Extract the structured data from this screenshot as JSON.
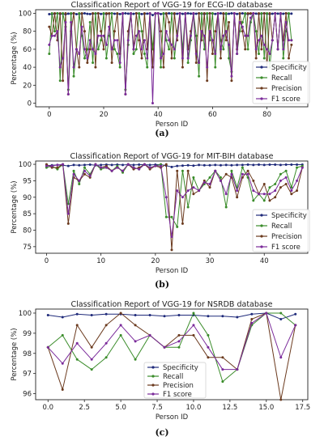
{
  "panels": [
    {
      "caption": "(a)"
    },
    {
      "caption": "(b)"
    },
    {
      "caption": "(c)"
    }
  ],
  "legend_colors": {
    "Specificity": "#1f2a7a",
    "Recall": "#3a8c2a",
    "Precision": "#6b3a1e",
    "F1 score": "#7a2a9a"
  },
  "chart_data": [
    {
      "type": "line",
      "title": "Classification Report of VGG-19 for ECG-ID database",
      "xlabel": "Person ID",
      "ylabel": "Percentage (%)",
      "xlim": [
        -5,
        95
      ],
      "ylim": [
        -4,
        104
      ],
      "xticks": [
        0,
        20,
        40,
        60,
        80
      ],
      "yticks": [
        0,
        20,
        40,
        60,
        80,
        100
      ],
      "legend_position": "lower-right",
      "x": [
        0,
        1,
        2,
        3,
        4,
        5,
        6,
        7,
        8,
        9,
        10,
        11,
        12,
        13,
        14,
        15,
        16,
        17,
        18,
        19,
        20,
        21,
        22,
        23,
        24,
        25,
        26,
        27,
        28,
        29,
        30,
        31,
        32,
        33,
        34,
        35,
        36,
        37,
        38,
        39,
        40,
        41,
        42,
        43,
        44,
        45,
        46,
        47,
        48,
        49,
        50,
        51,
        52,
        53,
        54,
        55,
        56,
        57,
        58,
        59,
        60,
        61,
        62,
        63,
        64,
        65,
        66,
        67,
        68,
        69,
        70,
        71,
        72,
        73,
        74,
        75,
        76,
        77,
        78,
        79,
        80,
        81,
        82,
        83,
        84,
        85,
        86,
        87,
        88,
        89
      ],
      "series": [
        {
          "name": "Specificity",
          "values": [
            99,
            99,
            99.5,
            100,
            99.2,
            99.5,
            98.8,
            99.6,
            99.4,
            100,
            99,
            99.3,
            99.5,
            100,
            99.4,
            99.2,
            99.6,
            99.5,
            100,
            99.3,
            99.5,
            99.2,
            99.6,
            100,
            99.5,
            99.4,
            99.2,
            99.5,
            100,
            99.6,
            99.3,
            99.4,
            100,
            99.5,
            99.2,
            99.4,
            99.6,
            99.5,
            98,
            99.5,
            100,
            99.2,
            99.5,
            99.4,
            100,
            99.6,
            99.3,
            99.5,
            100,
            99.4,
            99.2,
            100,
            99.6,
            99.3,
            99.5,
            100,
            99.4,
            99.2,
            99.5,
            100,
            99.6,
            99.3,
            99.5,
            100,
            99.4,
            99.2,
            99.5,
            100,
            99.6,
            99.3,
            99.5,
            100,
            99.4,
            99.2,
            99.5,
            100,
            99.6,
            99.3,
            99.5,
            100,
            99.4,
            99.2,
            99.5,
            100,
            99.6,
            99.3,
            99.5,
            100,
            99.4,
            99.6
          ]
        },
        {
          "name": "Recall",
          "values": [
            55,
            100,
            80,
            100,
            25,
            100,
            85,
            15,
            100,
            30,
            60,
            100,
            75,
            50,
            60,
            90,
            45,
            100,
            60,
            70,
            100,
            50,
            75,
            100,
            60,
            55,
            40,
            100,
            15,
            65,
            100,
            55,
            60,
            100,
            80,
            55,
            40,
            100,
            60,
            100,
            100,
            40,
            100,
            70,
            60,
            100,
            50,
            80,
            100,
            60,
            100,
            45,
            70,
            100,
            75,
            30,
            100,
            60,
            100,
            70,
            100,
            40,
            100,
            70,
            60,
            100,
            50,
            35,
            100,
            55,
            80,
            90,
            100,
            60,
            90,
            100,
            80,
            55,
            100,
            50,
            100,
            40,
            70,
            100,
            60,
            100,
            50,
            80,
            100,
            70
          ]
        },
        {
          "name": "Precision",
          "values": [
            85,
            75,
            100,
            70,
            100,
            25,
            100,
            10,
            80,
            100,
            60,
            40,
            100,
            80,
            45,
            60,
            100,
            40,
            100,
            80,
            60,
            100,
            100,
            45,
            80,
            100,
            55,
            100,
            10,
            80,
            100,
            60,
            100,
            70,
            50,
            100,
            60,
            100,
            40,
            100,
            100,
            80,
            40,
            100,
            90,
            50,
            100,
            70,
            100,
            40,
            100,
            60,
            80,
            100,
            45,
            100,
            70,
            100,
            25,
            100,
            55,
            80,
            100,
            50,
            100,
            70,
            90,
            25,
            100,
            60,
            100,
            80,
            60,
            100,
            100,
            100,
            50,
            100,
            60,
            100,
            40,
            100,
            70,
            100,
            60,
            100,
            70,
            100,
            50,
            65
          ]
        },
        {
          "name": "F1 score",
          "values": [
            65,
            75,
            75,
            80,
            40,
            50,
            90,
            10,
            90,
            40,
            60,
            55,
            85,
            60,
            50,
            70,
            60,
            55,
            75,
            75,
            75,
            65,
            85,
            60,
            70,
            70,
            45,
            100,
            10,
            70,
            100,
            60,
            75,
            80,
            60,
            70,
            50,
            100,
            0,
            100,
            100,
            50,
            55,
            80,
            70,
            65,
            60,
            75,
            100,
            50,
            100,
            50,
            75,
            100,
            55,
            45,
            80,
            75,
            40,
            80,
            70,
            55,
            100,
            60,
            75,
            80,
            65,
            30,
            100,
            55,
            90,
            85,
            75,
            75,
            95,
            100,
            60,
            70,
            75,
            65,
            60,
            55,
            70,
            100,
            60,
            100,
            60,
            90,
            70,
            70
          ]
        }
      ]
    },
    {
      "type": "line",
      "title": "Classification Report of VGG-19 for MIT-BIH database",
      "xlabel": "Person ID",
      "ylabel": "Percentage (%)",
      "xlim": [
        -2,
        48
      ],
      "ylim": [
        73,
        101
      ],
      "xticks": [
        0,
        10,
        20,
        30,
        40
      ],
      "yticks": [
        75,
        80,
        85,
        90,
        95,
        100
      ],
      "legend_position": "lower-right",
      "x": [
        0,
        1,
        2,
        3,
        4,
        5,
        6,
        7,
        8,
        9,
        10,
        11,
        12,
        13,
        14,
        15,
        16,
        17,
        18,
        19,
        20,
        21,
        22,
        23,
        24,
        25,
        26,
        27,
        28,
        29,
        30,
        31,
        32,
        33,
        34,
        35,
        36,
        37,
        38,
        39,
        40,
        41,
        42,
        43,
        44,
        45,
        46,
        47
      ],
      "series": [
        {
          "name": "Specificity",
          "values": [
            99.6,
            99.7,
            99.8,
            99.7,
            99.5,
            99.8,
            99.7,
            99.8,
            99.9,
            99.7,
            99.8,
            99.9,
            99.8,
            99.9,
            99.8,
            99.9,
            99.8,
            99.9,
            99.9,
            99.8,
            99.9,
            99.9,
            99.6,
            99.2,
            99.5,
            99.6,
            99.7,
            99.6,
            99.8,
            99.7,
            99.7,
            99.8,
            99.7,
            99.8,
            99.7,
            99.8,
            99.8,
            99.9,
            99.8,
            99.9,
            99.8,
            99.9,
            99.9,
            99.8,
            99.9,
            99.9,
            99.9,
            99.9
          ]
        },
        {
          "name": "Recall",
          "values": [
            99,
            99.5,
            98.5,
            100,
            88,
            98,
            94,
            99,
            97,
            100,
            98.5,
            99,
            98,
            99.5,
            97.5,
            100,
            99,
            98.5,
            100,
            99,
            99.5,
            100,
            84,
            84,
            81,
            98,
            87,
            96,
            92,
            94,
            96,
            98,
            96,
            87,
            98,
            93,
            99,
            96,
            89,
            91,
            89,
            93,
            94,
            97,
            98,
            93,
            99,
            99.5
          ]
        },
        {
          "name": "Precision",
          "values": [
            100,
            99,
            99,
            100,
            82,
            96,
            95,
            97,
            96,
            100,
            99,
            99.5,
            98,
            99,
            98,
            100,
            98.5,
            99,
            100,
            98.5,
            99.5,
            99,
            100,
            74,
            98,
            82,
            98,
            91,
            92,
            95,
            93,
            98,
            95,
            97,
            96,
            90,
            96,
            98,
            95,
            91,
            94,
            89,
            90,
            93,
            94,
            91,
            92,
            99
          ]
        },
        {
          "name": "F1 score",
          "values": [
            99.5,
            99.5,
            99.8,
            100,
            85,
            97,
            95,
            98,
            96.5,
            100,
            99,
            99,
            98,
            99,
            98,
            100,
            99,
            98.5,
            100,
            99,
            99.5,
            99.5,
            90,
            78,
            92,
            90,
            92,
            93,
            92,
            94.5,
            94,
            98,
            95,
            91,
            97,
            92,
            97,
            97,
            92,
            91,
            91,
            91,
            92,
            95,
            96,
            92,
            95,
            99
          ]
        }
      ]
    },
    {
      "type": "line",
      "title": "Classification Report of VGG-19 for NSRDB database",
      "xlabel": "Person ID",
      "ylabel": "Percentage (%)",
      "xlim": [
        -0.85,
        17.85
      ],
      "ylim": [
        95.7,
        100.2
      ],
      "xticks": [
        0.0,
        2.5,
        5.0,
        7.5,
        10.0,
        12.5,
        15.0,
        17.5
      ],
      "xtick_labels": [
        "0.0",
        "2.5",
        "5.0",
        "7.5",
        "10.0",
        "12.5",
        "15.0",
        "17.5"
      ],
      "yticks": [
        96,
        97,
        98,
        99,
        100
      ],
      "legend_position": "lower-center",
      "x": [
        0,
        1,
        2,
        3,
        4,
        5,
        6,
        7,
        8,
        9,
        10,
        11,
        12,
        13,
        14,
        15,
        16,
        17
      ],
      "series": [
        {
          "name": "Specificity",
          "values": [
            99.9,
            99.8,
            99.95,
            99.9,
            99.95,
            99.95,
            99.9,
            99.9,
            99.85,
            99.9,
            99.9,
            99.85,
            99.85,
            99.8,
            99.95,
            100,
            99.7,
            99.95
          ]
        },
        {
          "name": "Recall",
          "values": [
            98.3,
            98.9,
            97.7,
            97.2,
            97.8,
            98.9,
            97.7,
            98.9,
            98.3,
            98.3,
            100,
            98.9,
            96.6,
            97.2,
            99.4,
            100,
            100,
            99.4
          ]
        },
        {
          "name": "Precision",
          "values": [
            98.3,
            96.2,
            99.4,
            98.3,
            99.4,
            100,
            99.4,
            98.9,
            98.3,
            98.9,
            98.9,
            97.8,
            97.8,
            97.2,
            99.7,
            100,
            95.7,
            99.4
          ]
        },
        {
          "name": "F1 score",
          "values": [
            98.3,
            97.5,
            98.5,
            97.7,
            98.5,
            99.4,
            98.6,
            98.9,
            98.3,
            98.6,
            99.4,
            98.3,
            97.2,
            97.2,
            99.5,
            100,
            97.8,
            99.4
          ]
        }
      ]
    }
  ]
}
